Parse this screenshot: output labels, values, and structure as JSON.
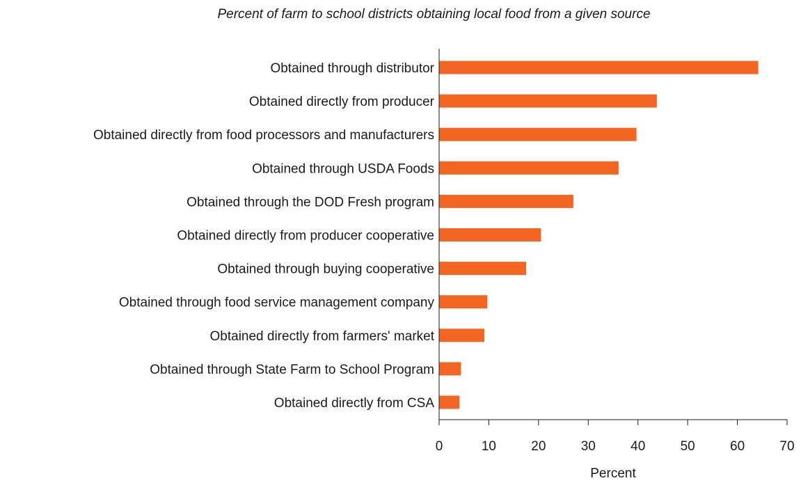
{
  "chart_data": {
    "type": "bar",
    "orientation": "horizontal",
    "title": "Percent of farm to school districts obtaining local food from a given source",
    "xlabel": "Percent",
    "ylabel": "",
    "xlim": [
      0,
      70
    ],
    "xticks": [
      0,
      10,
      20,
      30,
      40,
      50,
      60,
      70
    ],
    "grid": false,
    "bar_color": "#f26522",
    "categories": [
      "Obtained through distributor",
      "Obtained directly from producer",
      "Obtained directly from food processors and manufacturers",
      "Obtained through USDA Foods",
      "Obtained through the DOD Fresh program",
      "Obtained directly from producer cooperative",
      "Obtained through buying cooperative",
      "Obtained through food service management company",
      "Obtained directly from farmers' market",
      "Obtained through State Farm to School Program",
      "Obtained directly from CSA"
    ],
    "values": [
      64.2,
      43.8,
      39.7,
      36.1,
      27.0,
      20.5,
      17.5,
      9.7,
      9.1,
      4.4,
      4.1
    ]
  }
}
